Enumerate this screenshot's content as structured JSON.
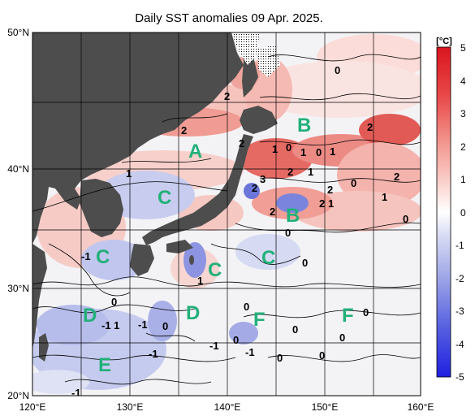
{
  "title": "Daily SST anomalies 09 Apr. 2025.",
  "colorbar": {
    "unit": "[°C]",
    "ticks": [
      "5",
      "4",
      "3",
      "2",
      "1",
      "0",
      "-1",
      "-2",
      "-3",
      "-4",
      "-5"
    ]
  },
  "axes": {
    "lat_labels": [
      "50°N",
      "40°N",
      "30°N",
      "20°N"
    ],
    "lon_labels": [
      "120°E",
      "130°E",
      "140°E",
      "150°E",
      "160°E"
    ]
  },
  "region_labels": [
    "A",
    "B",
    "B",
    "C",
    "C",
    "C",
    "C",
    "D",
    "D",
    "E",
    "F",
    "F"
  ],
  "contour_labels": [
    "0",
    "2",
    "2",
    "2",
    "1",
    "0",
    "1",
    "0",
    "1",
    "2",
    "2",
    "1",
    "2",
    "3",
    "2",
    "2",
    "1",
    "0",
    "2",
    "2",
    "1",
    "0",
    "0",
    "-1",
    "1",
    "0",
    "0",
    "0",
    "-1",
    "1",
    "0",
    "-1",
    "0",
    "-1",
    "0",
    "0",
    "-1",
    "-1",
    "0",
    "0",
    "0",
    "-1",
    "1"
  ],
  "colors": {
    "land": "#4d4d4d",
    "warm_max": "#d9151e",
    "cold_max": "#1f1fe0",
    "neutral": "#ffffff",
    "region_label": "#22b07a"
  }
}
